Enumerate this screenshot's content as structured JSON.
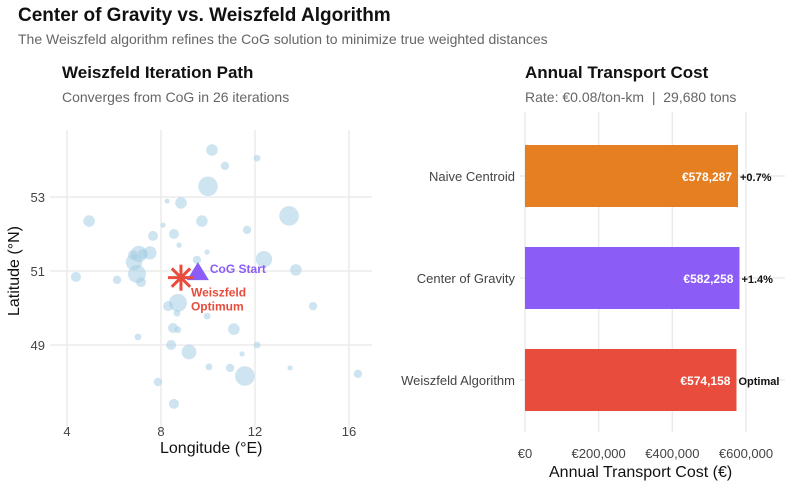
{
  "title": "Center of Gravity vs. Weiszfeld Algorithm",
  "subtitle": "The Weiszfeld algorithm refines the CoG solution to minimize true weighted distances",
  "colors": {
    "points": "#a6cde3",
    "cog": "#8b5cf6",
    "weiszfeld": "#e74c3c",
    "naive": "#e67e22",
    "grid": "#ebebeb"
  },
  "chart_data": [
    {
      "type": "scatter",
      "title": "Weiszfeld Iteration Path",
      "subtitle": "Converges from CoG in 26 iterations",
      "xlabel": "Longitude (°E)",
      "ylabel": "Latitude (°N)",
      "xlim": [
        3.3,
        17
      ],
      "ylim": [
        47,
        54.9
      ],
      "xticks": [
        4,
        8,
        12,
        16
      ],
      "yticks": [
        49,
        51,
        53
      ],
      "grid": true,
      "points_note_size": "relative demand weight",
      "points": [
        [
          10.17,
          54.27,
          6
        ],
        [
          10.72,
          53.84,
          4
        ],
        [
          12.09,
          54.05,
          3
        ],
        [
          10.0,
          53.29,
          11
        ],
        [
          8.26,
          52.89,
          2
        ],
        [
          8.85,
          52.84,
          6
        ],
        [
          13.45,
          52.49,
          11
        ],
        [
          4.94,
          52.35,
          6
        ],
        [
          9.74,
          52.35,
          6
        ],
        [
          8.09,
          52.24,
          2
        ],
        [
          11.66,
          52.11,
          4
        ],
        [
          8.55,
          52.0,
          5
        ],
        [
          7.66,
          51.95,
          5
        ],
        [
          8.77,
          51.7,
          2
        ],
        [
          7.53,
          51.49,
          7
        ],
        [
          7.06,
          51.46,
          9
        ],
        [
          7.23,
          51.46,
          5
        ],
        [
          6.81,
          51.43,
          5
        ],
        [
          9.96,
          51.51,
          2
        ],
        [
          9.53,
          51.3,
          4
        ],
        [
          12.38,
          51.32,
          9
        ],
        [
          6.85,
          51.24,
          9
        ],
        [
          13.74,
          51.03,
          6
        ],
        [
          4.38,
          50.84,
          5
        ],
        [
          6.13,
          50.76,
          4
        ],
        [
          6.98,
          50.92,
          10
        ],
        [
          7.15,
          50.7,
          5
        ],
        [
          8.72,
          50.14,
          10
        ],
        [
          8.3,
          50.05,
          5
        ],
        [
          14.47,
          50.05,
          4
        ],
        [
          8.68,
          49.86,
          3
        ],
        [
          9.96,
          49.78,
          3
        ],
        [
          8.51,
          49.46,
          5
        ],
        [
          8.72,
          49.41,
          3
        ],
        [
          11.1,
          49.43,
          6
        ],
        [
          7.02,
          49.22,
          3
        ],
        [
          8.43,
          49.0,
          5
        ],
        [
          9.19,
          48.81,
          8
        ],
        [
          12.09,
          49.0,
          3
        ],
        [
          11.45,
          48.76,
          2
        ],
        [
          10.04,
          48.41,
          3
        ],
        [
          13.49,
          48.38,
          2
        ],
        [
          10.94,
          48.38,
          4
        ],
        [
          11.57,
          48.16,
          11
        ],
        [
          16.38,
          48.22,
          4
        ],
        [
          7.87,
          48.0,
          4
        ],
        [
          8.55,
          47.41,
          5
        ]
      ],
      "cog": {
        "lon": 9.57,
        "lat": 50.97,
        "label": "CoG Start"
      },
      "weiszfeld": {
        "lon": 8.85,
        "lat": 50.82,
        "label1": "Weiszfeld",
        "label2": "Optimum"
      }
    },
    {
      "type": "bar",
      "orientation": "horizontal",
      "title": "Annual Transport Cost",
      "subtitle": "Rate: €0.08/ton-km  |  29,680 tons",
      "xlabel": "Annual Transport Cost (€)",
      "xlim": [
        0,
        650000
      ],
      "xticks": [
        0,
        200000,
        400000,
        600000
      ],
      "xtick_labels": [
        "€0",
        "€200,000",
        "€400,000",
        "€600,000"
      ],
      "grid": true,
      "categories": [
        "Naive Centroid",
        "Center of Gravity",
        "Weiszfeld Algorithm"
      ],
      "values": [
        578287,
        582258,
        574158
      ],
      "value_labels": [
        "€578,287",
        "€582,258",
        "€574,158"
      ],
      "annotations": [
        "+0.7%",
        "+1.4%",
        "Optimal"
      ],
      "bar_colors": [
        "#e67e22",
        "#8b5cf6",
        "#e74c3c"
      ]
    }
  ]
}
